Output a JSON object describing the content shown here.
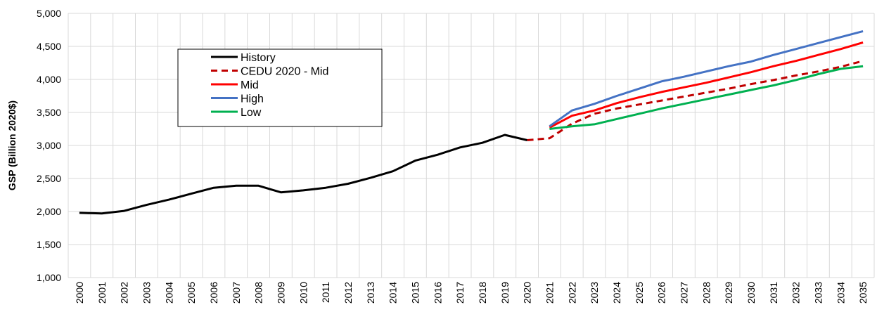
{
  "chart_data": {
    "type": "line",
    "y_label": "GSP (Billion 2020$)",
    "categories": [
      "2000",
      "2001",
      "2002",
      "2003",
      "2004",
      "2005",
      "2006",
      "2007",
      "2008",
      "2009",
      "2010",
      "2011",
      "2012",
      "2013",
      "2014",
      "2015",
      "2016",
      "2017",
      "2018",
      "2019",
      "2020",
      "2021",
      "2022",
      "2023",
      "2024",
      "2025",
      "2026",
      "2027",
      "2028",
      "2029",
      "2030",
      "2031",
      "2032",
      "2033",
      "2034",
      "2035"
    ],
    "ylim": [
      1000,
      5000
    ],
    "yticks": [
      {
        "value": 1000,
        "label": "1,000"
      },
      {
        "value": 1500,
        "label": "1,500"
      },
      {
        "value": 2000,
        "label": "2,000"
      },
      {
        "value": 2500,
        "label": "2,500"
      },
      {
        "value": 3000,
        "label": "3,000"
      },
      {
        "value": 3500,
        "label": "3,500"
      },
      {
        "value": 4000,
        "label": "4,000"
      },
      {
        "value": 4500,
        "label": "4,500"
      },
      {
        "value": 5000,
        "label": "5,000"
      }
    ],
    "grid": true,
    "series": [
      {
        "name": "History",
        "color": "#000000",
        "dashed": false,
        "values": [
          1980,
          1970,
          2010,
          2100,
          2180,
          2270,
          2360,
          2390,
          2390,
          2290,
          2320,
          2360,
          2420,
          2510,
          2610,
          2770,
          2860,
          2970,
          3040,
          3160,
          3080,
          null,
          null,
          null,
          null,
          null,
          null,
          null,
          null,
          null,
          null,
          null,
          null,
          null,
          null,
          null
        ]
      },
      {
        "name": "CEDU 2020 - Mid",
        "color": "#c00000",
        "dashed": true,
        "values": [
          null,
          null,
          null,
          null,
          null,
          null,
          null,
          null,
          null,
          null,
          null,
          null,
          null,
          null,
          null,
          null,
          null,
          null,
          null,
          null,
          3080,
          3110,
          3330,
          3480,
          3560,
          3620,
          3680,
          3740,
          3800,
          3860,
          3930,
          3990,
          4060,
          4120,
          4190,
          4280
        ]
      },
      {
        "name": "Mid",
        "color": "#ff0000",
        "dashed": false,
        "values": [
          null,
          null,
          null,
          null,
          null,
          null,
          null,
          null,
          null,
          null,
          null,
          null,
          null,
          null,
          null,
          null,
          null,
          null,
          null,
          null,
          null,
          3270,
          3450,
          3530,
          3640,
          3730,
          3810,
          3880,
          3950,
          4030,
          4110,
          4200,
          4280,
          4370,
          4460,
          4560
        ]
      },
      {
        "name": "High",
        "color": "#4472c4",
        "dashed": false,
        "values": [
          null,
          null,
          null,
          null,
          null,
          null,
          null,
          null,
          null,
          null,
          null,
          null,
          null,
          null,
          null,
          null,
          null,
          null,
          null,
          null,
          null,
          3290,
          3530,
          3630,
          3750,
          3860,
          3970,
          4040,
          4120,
          4200,
          4270,
          4370,
          4460,
          4550,
          4640,
          4730
        ]
      },
      {
        "name": "Low",
        "color": "#00b050",
        "dashed": false,
        "values": [
          null,
          null,
          null,
          null,
          null,
          null,
          null,
          null,
          null,
          null,
          null,
          null,
          null,
          null,
          null,
          null,
          null,
          null,
          null,
          null,
          null,
          3250,
          3290,
          3320,
          3400,
          3480,
          3560,
          3630,
          3700,
          3770,
          3840,
          3910,
          3990,
          4080,
          4160,
          4200
        ]
      }
    ]
  }
}
